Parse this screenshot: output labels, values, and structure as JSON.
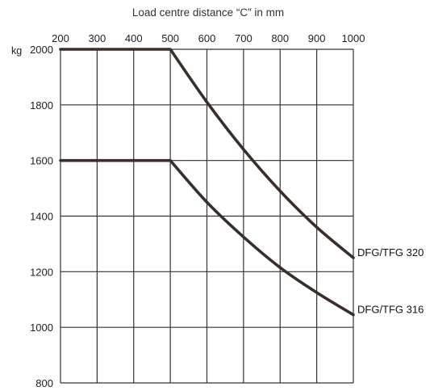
{
  "chart_data": {
    "type": "line",
    "title": "Load centre distance “C” in mm",
    "xlabel": "Load centre distance “C” in mm",
    "ylabel": "kg",
    "x_ticks": [
      200,
      300,
      400,
      500,
      600,
      700,
      800,
      900,
      1000
    ],
    "y_ticks": [
      2000,
      1800,
      1600,
      1400,
      1200,
      1000,
      800
    ],
    "y_tick_labels": [
      "2000",
      "1800",
      "1600",
      "1400",
      "1200",
      "1000",
      "800"
    ],
    "y_unit_label": "kg",
    "xlim": [
      200,
      1000
    ],
    "ylim": [
      800,
      2000
    ],
    "x_axis_position": "top",
    "grid": true,
    "series": [
      {
        "name": "DFG/TFG 320",
        "x": [
          200,
          500,
          600,
          700,
          800,
          900,
          1000
        ],
        "values": [
          2000,
          2000,
          1810,
          1640,
          1490,
          1360,
          1250
        ]
      },
      {
        "name": "DFG/TFG 316",
        "x": [
          200,
          500,
          600,
          700,
          800,
          900,
          1000
        ],
        "values": [
          1600,
          1600,
          1450,
          1325,
          1215,
          1125,
          1045
        ]
      }
    ]
  }
}
